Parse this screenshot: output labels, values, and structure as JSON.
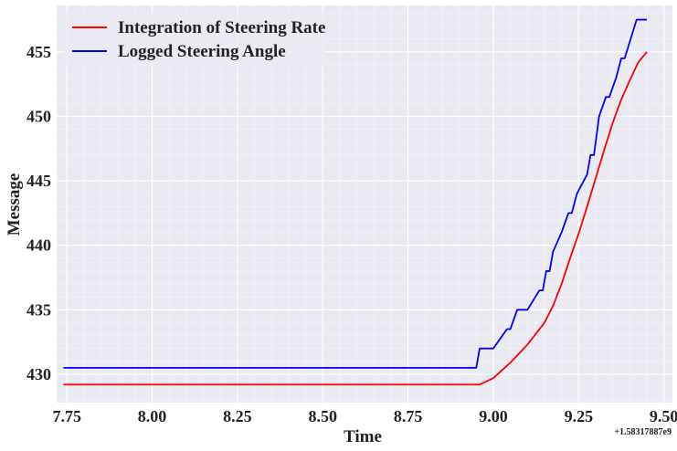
{
  "chart_data": {
    "type": "line",
    "title": "",
    "xlabel": "Time",
    "ylabel": "Message",
    "x_offset_label": "+1.58317887e9",
    "xlim": [
      7.72,
      9.525
    ],
    "ylim": [
      427.8,
      458.6
    ],
    "x_ticks": [
      7.75,
      8.0,
      8.25,
      8.5,
      8.75,
      9.0,
      9.25,
      9.5
    ],
    "x_tick_labels": [
      "7.75",
      "8.00",
      "8.25",
      "8.50",
      "8.75",
      "9.00",
      "9.25",
      "9.50"
    ],
    "y_ticks": [
      430,
      435,
      440,
      445,
      450,
      455
    ],
    "y_tick_labels": [
      "430",
      "435",
      "440",
      "445",
      "450",
      "455"
    ],
    "grid": true,
    "minor_grid": true,
    "legend_position": "top-left",
    "background": "#eaeaf2",
    "series": [
      {
        "name": "Integration of Steering Rate",
        "color": "#ff0000",
        "points": [
          [
            7.74,
            429.2
          ],
          [
            8.96,
            429.2
          ],
          [
            9.0,
            429.7
          ],
          [
            9.05,
            430.9
          ],
          [
            9.1,
            432.3
          ],
          [
            9.15,
            434.0
          ],
          [
            9.175,
            435.3
          ],
          [
            9.2,
            437.0
          ],
          [
            9.225,
            439.0
          ],
          [
            9.25,
            440.9
          ],
          [
            9.275,
            443.0
          ],
          [
            9.3,
            445.2
          ],
          [
            9.325,
            447.4
          ],
          [
            9.35,
            449.5
          ],
          [
            9.375,
            451.3
          ],
          [
            9.4,
            452.8
          ],
          [
            9.425,
            454.2
          ],
          [
            9.45,
            455.0
          ]
        ]
      },
      {
        "name": "Logged Steering Angle",
        "color": "#0000ff",
        "points": [
          [
            7.74,
            430.5
          ],
          [
            8.95,
            430.5
          ],
          [
            8.96,
            432.0
          ],
          [
            9.0,
            432.0
          ],
          [
            9.04,
            433.5
          ],
          [
            9.05,
            433.5
          ],
          [
            9.07,
            435.0
          ],
          [
            9.1,
            435.0
          ],
          [
            9.135,
            436.5
          ],
          [
            9.145,
            436.5
          ],
          [
            9.155,
            438.0
          ],
          [
            9.165,
            438.0
          ],
          [
            9.175,
            439.5
          ],
          [
            9.2,
            441.0
          ],
          [
            9.22,
            442.5
          ],
          [
            9.23,
            442.5
          ],
          [
            9.245,
            444.0
          ],
          [
            9.275,
            445.5
          ],
          [
            9.285,
            447.0
          ],
          [
            9.295,
            447.0
          ],
          [
            9.31,
            450.0
          ],
          [
            9.33,
            451.5
          ],
          [
            9.34,
            451.5
          ],
          [
            9.36,
            453.0
          ],
          [
            9.375,
            454.5
          ],
          [
            9.385,
            454.5
          ],
          [
            9.42,
            457.5
          ],
          [
            9.45,
            457.5
          ]
        ]
      }
    ]
  }
}
